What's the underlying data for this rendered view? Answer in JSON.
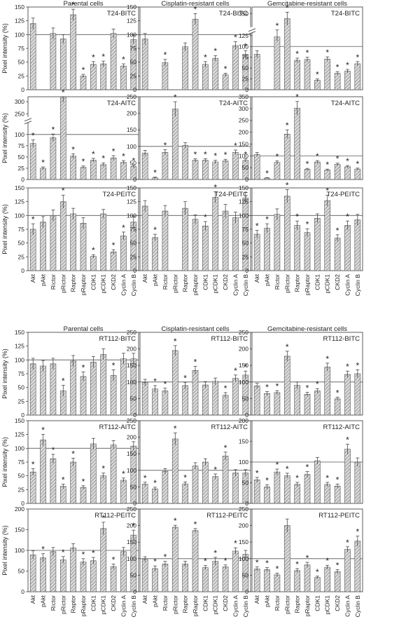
{
  "figure": {
    "categories": [
      "Akt",
      "pAkt",
      "Rictor",
      "pRictor",
      "Raptor",
      "pRaptor",
      "CDK1",
      "pCDK1",
      "CKD2",
      "Cyclin A",
      "Cyclin B"
    ],
    "ylabel": "Pixel intensity (%)",
    "reference_value": 100,
    "significance_marker": "*",
    "colors": {
      "bar_fill": "#d9d9d9",
      "bar_hatch": "#555555",
      "axis": "#333333",
      "reference_line": "#555555"
    }
  },
  "chart_data": [
    {
      "type": "bar",
      "title": "Parental cells",
      "panel_label": "T24-BITC",
      "ylim": [
        0,
        150
      ],
      "yticks": [
        0,
        25,
        50,
        75,
        100,
        125,
        150
      ],
      "values": [
        120,
        null,
        102,
        92,
        136,
        25,
        46,
        47,
        102,
        43,
        91
      ],
      "errors": [
        10,
        0,
        10,
        8,
        10,
        3,
        5,
        5,
        8,
        4,
        8
      ],
      "significant": [
        false,
        false,
        false,
        false,
        true,
        true,
        true,
        true,
        false,
        true,
        false
      ]
    },
    {
      "type": "bar",
      "title": "Cisplatin-resistant cells",
      "panel_label": "T24-BITC",
      "ylim": [
        0,
        150
      ],
      "yticks": [
        0,
        25,
        50,
        75,
        100,
        125,
        150
      ],
      "values": [
        92,
        null,
        49,
        null,
        78,
        128,
        46,
        57,
        27,
        80,
        64
      ],
      "errors": [
        10,
        0,
        6,
        0,
        7,
        10,
        5,
        5,
        3,
        7,
        7
      ],
      "significant": [
        false,
        false,
        true,
        false,
        false,
        true,
        true,
        true,
        true,
        true,
        true
      ]
    },
    {
      "type": "bar",
      "title": "Gemcitabine-resistant cells",
      "panel_label": "T24-BITC",
      "ylim": [
        0,
        350
      ],
      "yticks": [
        0,
        25,
        50,
        75,
        100,
        125,
        350
      ],
      "axis_break": {
        "low_max": 130,
        "high_min": 320,
        "high_max": 365
      },
      "values": [
        82,
        null,
        122,
        338,
        68,
        70,
        22,
        71,
        38,
        43,
        60
      ],
      "errors": [
        8,
        0,
        10,
        15,
        5,
        5,
        3,
        5,
        4,
        4,
        5
      ],
      "significant": [
        false,
        false,
        true,
        true,
        true,
        true,
        true,
        true,
        true,
        true,
        true
      ]
    },
    {
      "type": "bar",
      "title": "",
      "panel_label": "T24-AITC",
      "ylim": [
        0,
        300
      ],
      "yticks": [
        0,
        25,
        50,
        75,
        100,
        250,
        300
      ],
      "axis_break": {
        "low_max": 125,
        "high_min": 240,
        "high_max": 320
      },
      "values": [
        80,
        25,
        93,
        328,
        52,
        27,
        43,
        33,
        48,
        38,
        29
      ],
      "errors": [
        8,
        3,
        8,
        30,
        5,
        3,
        4,
        4,
        5,
        4,
        3
      ],
      "significant": [
        true,
        true,
        true,
        true,
        true,
        true,
        true,
        true,
        true,
        true,
        true
      ]
    },
    {
      "type": "bar",
      "title": "",
      "panel_label": "T24-AITC",
      "ylim": [
        0,
        250
      ],
      "yticks": [
        0,
        50,
        100,
        150,
        200,
        250
      ],
      "values": [
        80,
        5,
        82,
        213,
        103,
        58,
        58,
        53,
        56,
        82,
        58
      ],
      "errors": [
        8,
        2,
        8,
        22,
        8,
        5,
        5,
        5,
        5,
        7,
        5
      ],
      "significant": [
        false,
        true,
        true,
        true,
        false,
        true,
        true,
        true,
        true,
        true,
        true
      ]
    },
    {
      "type": "bar",
      "title": "",
      "panel_label": "T24-AITC",
      "ylim": [
        0,
        350
      ],
      "yticks": [
        0,
        50,
        100,
        150,
        200,
        250,
        300,
        350
      ],
      "values": [
        106,
        6,
        72,
        192,
        302,
        43,
        74,
        40,
        64,
        54,
        44
      ],
      "errors": [
        8,
        2,
        7,
        18,
        28,
        4,
        6,
        4,
        5,
        5,
        4
      ],
      "significant": [
        false,
        true,
        true,
        true,
        true,
        true,
        true,
        true,
        true,
        true,
        true
      ]
    },
    {
      "type": "bar",
      "title": "",
      "panel_label": "T24-PEITC",
      "ylim": [
        0,
        150
      ],
      "yticks": [
        0,
        25,
        50,
        75,
        100,
        125,
        150
      ],
      "values": [
        75,
        88,
        100,
        125,
        103,
        86,
        26,
        103,
        34,
        63,
        88
      ],
      "errors": [
        10,
        10,
        10,
        12,
        10,
        10,
        3,
        8,
        4,
        7,
        10
      ],
      "significant": [
        true,
        false,
        false,
        true,
        false,
        false,
        true,
        false,
        true,
        true,
        false
      ]
    },
    {
      "type": "bar",
      "title": "",
      "panel_label": "T24-PEITC",
      "ylim": [
        0,
        150
      ],
      "yticks": [
        0,
        25,
        50,
        75,
        100,
        125,
        150
      ],
      "values": [
        117,
        60,
        108,
        null,
        113,
        93,
        81,
        133,
        108,
        96,
        132
      ],
      "errors": [
        10,
        6,
        10,
        0,
        12,
        8,
        8,
        10,
        12,
        10,
        10
      ],
      "significant": [
        false,
        true,
        false,
        false,
        false,
        false,
        true,
        true,
        false,
        false,
        false
      ]
    },
    {
      "type": "bar",
      "title": "",
      "panel_label": "T24-PEITC",
      "ylim": [
        0,
        150
      ],
      "yticks": [
        0,
        25,
        50,
        75,
        100,
        125,
        150
      ],
      "values": [
        66,
        77,
        102,
        135,
        82,
        69,
        95,
        127,
        59,
        82,
        92
      ],
      "errors": [
        7,
        8,
        10,
        12,
        8,
        7,
        8,
        10,
        6,
        8,
        10
      ],
      "significant": [
        true,
        true,
        false,
        true,
        true,
        true,
        false,
        true,
        true,
        true,
        false
      ]
    },
    {
      "type": "bar",
      "title": "Parental cells",
      "panel_label": "RT112-BITC",
      "ylim": [
        0,
        150
      ],
      "yticks": [
        0,
        25,
        50,
        75,
        100,
        125,
        150
      ],
      "values": [
        93,
        89,
        93,
        44,
        98,
        70,
        96,
        110,
        72,
        102,
        102
      ],
      "errors": [
        10,
        10,
        10,
        10,
        10,
        8,
        10,
        10,
        10,
        10,
        10
      ],
      "significant": [
        false,
        false,
        false,
        true,
        false,
        true,
        false,
        false,
        true,
        false,
        false
      ]
    },
    {
      "type": "bar",
      "title": "Cisplatin-resistant cells",
      "panel_label": "RT112-BITC",
      "ylim": [
        0,
        250
      ],
      "yticks": [
        0,
        50,
        100,
        150,
        200,
        250
      ],
      "values": [
        98,
        79,
        73,
        195,
        89,
        135,
        91,
        102,
        60,
        111,
        121
      ],
      "errors": [
        10,
        10,
        8,
        15,
        10,
        12,
        10,
        10,
        8,
        10,
        12
      ],
      "significant": [
        false,
        true,
        true,
        true,
        true,
        true,
        false,
        false,
        true,
        true,
        true
      ]
    },
    {
      "type": "bar",
      "title": "Gemcitabine-resistant cells",
      "panel_label": "RT112-BITC",
      "ylim": [
        0,
        250
      ],
      "yticks": [
        0,
        50,
        100,
        150,
        200,
        250
      ],
      "values": [
        88,
        65,
        68,
        178,
        90,
        63,
        73,
        145,
        49,
        123,
        125
      ],
      "errors": [
        8,
        6,
        6,
        15,
        10,
        6,
        7,
        12,
        5,
        10,
        12
      ],
      "significant": [
        false,
        true,
        true,
        true,
        false,
        true,
        true,
        true,
        true,
        true,
        true
      ]
    },
    {
      "type": "bar",
      "title": "",
      "panel_label": "RT112-AITC",
      "ylim": [
        0,
        150
      ],
      "yticks": [
        0,
        25,
        50,
        75,
        100,
        125,
        150
      ],
      "values": [
        57,
        115,
        81,
        31,
        75,
        29,
        108,
        50,
        106,
        42,
        104
      ],
      "errors": [
        6,
        10,
        8,
        4,
        7,
        3,
        10,
        5,
        8,
        4,
        8
      ],
      "significant": [
        true,
        true,
        true,
        true,
        true,
        true,
        false,
        true,
        false,
        true,
        false
      ]
    },
    {
      "type": "bar",
      "title": "",
      "panel_label": "RT112-AITC",
      "ylim": [
        0,
        250
      ],
      "yticks": [
        0,
        50,
        100,
        150,
        200,
        250
      ],
      "values": [
        58,
        44,
        97,
        195,
        59,
        113,
        125,
        81,
        143,
        92,
        92
      ],
      "errors": [
        6,
        5,
        8,
        18,
        6,
        10,
        10,
        8,
        12,
        10,
        10
      ],
      "significant": [
        true,
        true,
        false,
        true,
        true,
        false,
        false,
        true,
        true,
        false,
        false
      ]
    },
    {
      "type": "bar",
      "title": "",
      "panel_label": "RT112-AITC",
      "ylim": [
        0,
        200
      ],
      "yticks": [
        0,
        50,
        100,
        150,
        200
      ],
      "values": [
        57,
        40,
        76,
        67,
        46,
        70,
        103,
        46,
        42,
        131,
        100
      ],
      "errors": [
        6,
        5,
        7,
        6,
        5,
        7,
        8,
        5,
        5,
        12,
        10
      ],
      "significant": [
        true,
        true,
        true,
        true,
        true,
        true,
        false,
        true,
        true,
        true,
        false
      ]
    },
    {
      "type": "bar",
      "title": "",
      "panel_label": "RT112-PEITC",
      "ylim": [
        0,
        200
      ],
      "yticks": [
        0,
        50,
        100,
        150,
        200
      ],
      "values": [
        89,
        82,
        97,
        77,
        106,
        72,
        75,
        153,
        61,
        97,
        137
      ],
      "errors": [
        10,
        10,
        10,
        8,
        10,
        8,
        8,
        15,
        6,
        10,
        12
      ],
      "significant": [
        false,
        true,
        false,
        true,
        false,
        true,
        true,
        true,
        true,
        false,
        true
      ]
    },
    {
      "type": "bar",
      "title": "",
      "panel_label": "RT112-PEITC",
      "ylim": [
        0,
        250
      ],
      "yticks": [
        0,
        50,
        100,
        150,
        200,
        250
      ],
      "values": [
        98,
        70,
        84,
        195,
        84,
        185,
        73,
        92,
        75,
        123,
        113
      ],
      "errors": [
        8,
        8,
        8,
        6,
        8,
        6,
        6,
        12,
        6,
        10,
        12
      ],
      "significant": [
        false,
        true,
        true,
        true,
        false,
        true,
        true,
        true,
        true,
        true,
        false
      ]
    },
    {
      "type": "bar",
      "title": "",
      "panel_label": "RT112-PEITC",
      "ylim": [
        0,
        250
      ],
      "yticks": [
        0,
        50,
        100,
        150,
        200,
        250
      ],
      "values": [
        69,
        67,
        51,
        200,
        64,
        81,
        43,
        74,
        61,
        128,
        153
      ],
      "errors": [
        6,
        6,
        5,
        20,
        6,
        8,
        4,
        6,
        6,
        8,
        15
      ],
      "significant": [
        true,
        true,
        true,
        false,
        true,
        true,
        true,
        true,
        true,
        true,
        true
      ]
    }
  ]
}
